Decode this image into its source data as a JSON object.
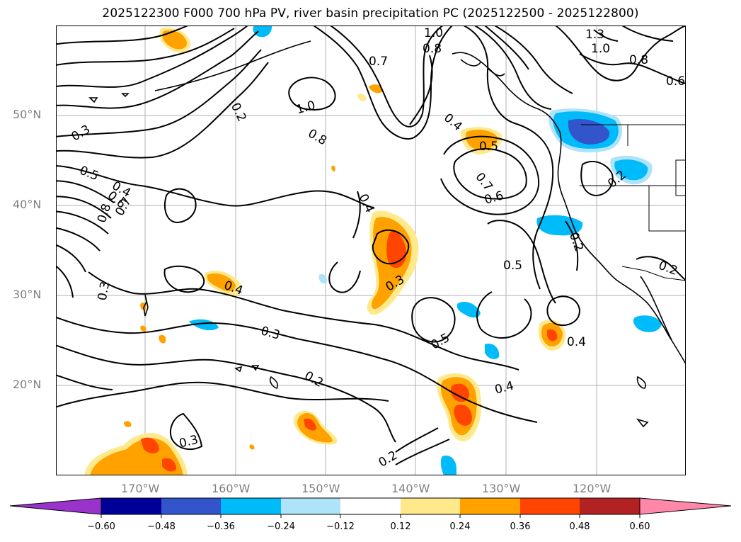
{
  "title": "2025122300 F000 700 hPa PV, river basin precipitation PC (2025122500 - 2025122800)",
  "lat_labels": [
    "50°N",
    "40°N",
    "30°N",
    "20°N"
  ],
  "lon_labels": [
    "170°W",
    "160°W",
    "150°W",
    "140°W",
    "130°W",
    "120°W"
  ],
  "contour_labels": [
    "1.0",
    "0.8",
    "0.7",
    "0.8",
    "0.6",
    "1.3",
    "1.0",
    "0.2",
    "1.0",
    "0.8",
    "0.4",
    "0.5",
    "0.3",
    "0.5",
    "0.4",
    "0.6",
    "0.8",
    "0.7",
    "0.7",
    "0.6",
    "0.4",
    "0.3",
    "0.5",
    "0.3",
    "0.4",
    "0.3",
    "0.5",
    "0.2",
    "0.4",
    "0.4",
    "0.3",
    "0.2",
    "0.2",
    "0.2",
    "0.2"
  ],
  "colorbar": {
    "ticks": [
      "−0.60",
      "−0.48",
      "−0.36",
      "−0.24",
      "−0.12",
      "0.12",
      "0.24",
      "0.36",
      "0.48",
      "0.60"
    ],
    "colors": {
      "lt_-0.60": "#9933cc",
      "-0.60_-0.48": "#000099",
      "-0.48_-0.36": "#3355cc",
      "-0.36_-0.24": "#00bbf9",
      "-0.24_-0.12": "#aee3f9",
      "-0.12_0.12": "#ffffff",
      "0.12_0.24": "#ffe98a",
      "0.24_0.36": "#ffa200",
      "0.36_0.48": "#ff4500",
      "0.48_0.60": "#b22222",
      "gt_0.60": "#ff88aa"
    }
  },
  "colors": {
    "axis_label": "#7f7f7f",
    "grid": "#b0b0b0",
    "contour": "#000000"
  }
}
